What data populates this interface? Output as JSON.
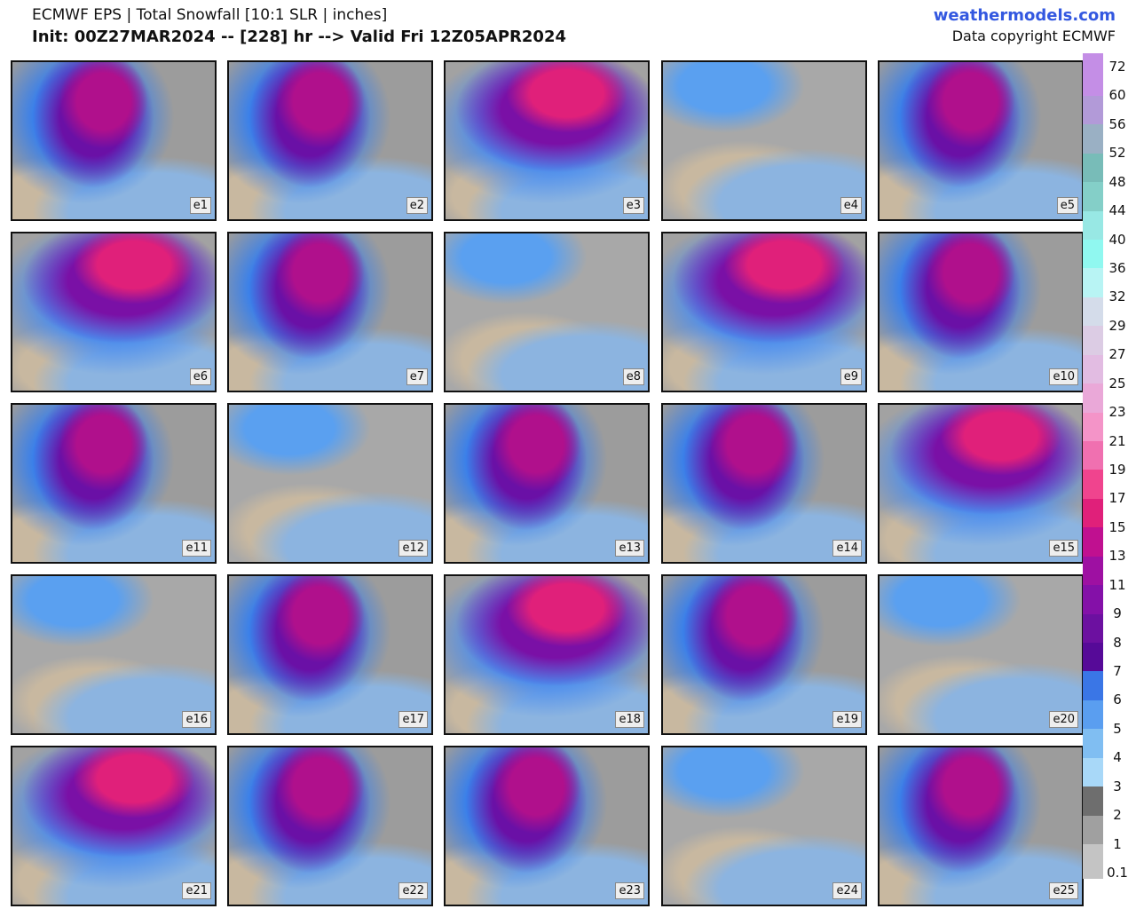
{
  "header": {
    "title": "ECMWF EPS | Total Snowfall [10:1 SLR | inches]",
    "subtitle": "Init: 00Z27MAR2024 -- [228] hr --> Valid Fri 12Z05APR2024",
    "site": "weathermodels.com",
    "copyright": "Data copyright ECMWF"
  },
  "panels": [
    {
      "label": "e1"
    },
    {
      "label": "e2"
    },
    {
      "label": "e3"
    },
    {
      "label": "e4"
    },
    {
      "label": "e5"
    },
    {
      "label": "e6"
    },
    {
      "label": "e7"
    },
    {
      "label": "e8"
    },
    {
      "label": "e9"
    },
    {
      "label": "e10"
    },
    {
      "label": "e11"
    },
    {
      "label": "e12"
    },
    {
      "label": "e13"
    },
    {
      "label": "e14"
    },
    {
      "label": "e15"
    },
    {
      "label": "e16"
    },
    {
      "label": "e17"
    },
    {
      "label": "e18"
    },
    {
      "label": "e19"
    },
    {
      "label": "e20"
    },
    {
      "label": "e21"
    },
    {
      "label": "e22"
    },
    {
      "label": "e23"
    },
    {
      "label": "e24"
    },
    {
      "label": "e25"
    }
  ],
  "colorbar": {
    "levels": [
      0.1,
      1,
      2,
      3,
      4,
      5,
      6,
      7,
      8,
      9,
      11,
      13,
      15,
      17,
      19,
      21,
      23,
      25,
      27,
      29,
      32,
      36,
      40,
      44,
      48,
      52,
      56,
      60,
      72
    ],
    "colors": [
      "#c4c4c4",
      "#a0a0a0",
      "#6e6e6e",
      "#a8d8f8",
      "#80bef2",
      "#5a9ef0",
      "#3a76e6",
      "#560a98",
      "#6c10a0",
      "#8410a8",
      "#9e10a2",
      "#c01090",
      "#e0207a",
      "#f0448e",
      "#f070b0",
      "#f494c8",
      "#eaa8d8",
      "#e2bce2",
      "#dccce4",
      "#d4dcea",
      "#b8f4f4",
      "#90f8f0",
      "#98e8e4",
      "#84cfc8",
      "#78bcb8",
      "#9ab0c4",
      "#b29ad8",
      "#c48ee6"
    ]
  }
}
